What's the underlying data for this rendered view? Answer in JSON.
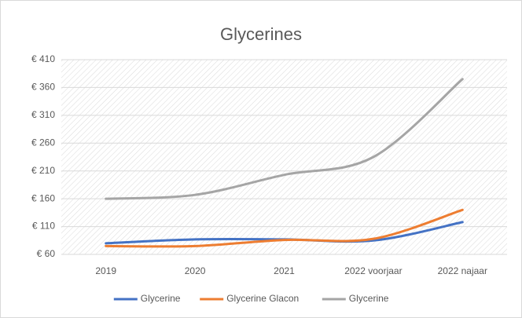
{
  "chart_data": {
    "type": "line",
    "title": "Glycerines",
    "categories": [
      "2019",
      "2020",
      "2021",
      "2022 voorjaar",
      "2022 najaar"
    ],
    "series": [
      {
        "name": "Glycerine",
        "color": "#4472c4",
        "values": [
          80,
          87,
          87,
          85,
          118
        ]
      },
      {
        "name": "Glycerine Glacon",
        "color": "#ed7d31",
        "values": [
          75,
          75,
          86,
          88,
          140
        ]
      },
      {
        "name": "Glycerine",
        "color": "#a5a5a5",
        "values": [
          160,
          167,
          203,
          235,
          375
        ]
      }
    ],
    "ylim": [
      60,
      410
    ],
    "yticks": [
      {
        "value": 60,
        "label": "€ 60"
      },
      {
        "value": 110,
        "label": "€ 110"
      },
      {
        "value": 160,
        "label": "€ 160"
      },
      {
        "value": 210,
        "label": "€ 210"
      },
      {
        "value": 260,
        "label": "€ 260"
      },
      {
        "value": 310,
        "label": "€ 310"
      },
      {
        "value": 360,
        "label": "€ 360"
      },
      {
        "value": 410,
        "label": "€ 410"
      }
    ],
    "grid": true,
    "smooth": true,
    "legend": "bottom"
  }
}
